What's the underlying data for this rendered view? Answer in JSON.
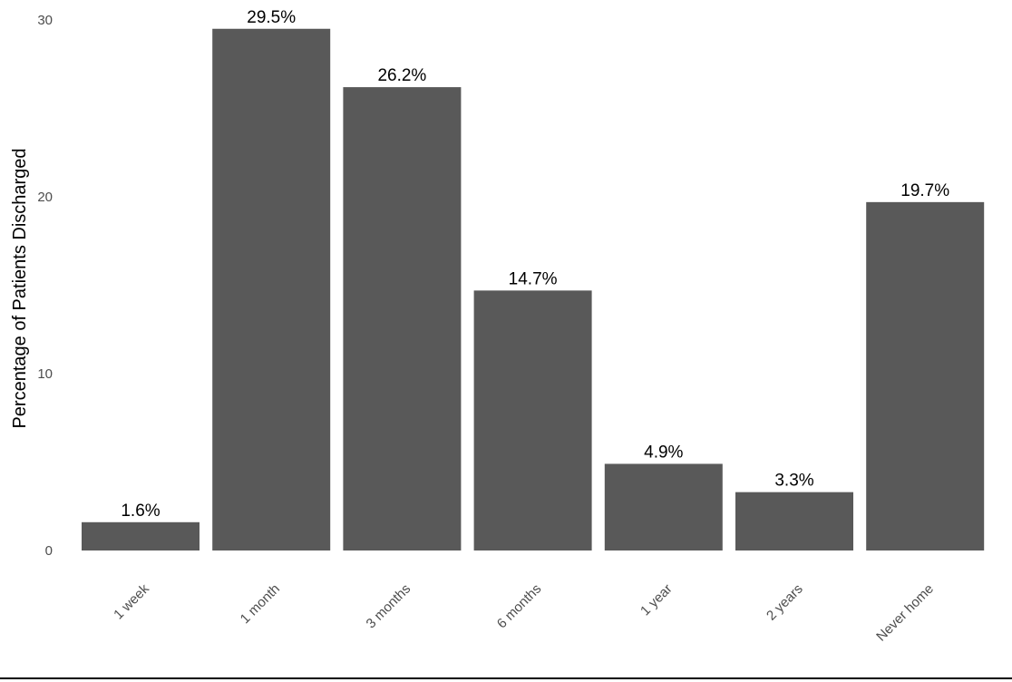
{
  "chart_data": {
    "type": "bar",
    "title": "",
    "xlabel": "",
    "ylabel": "Percentage of Patients Discharged",
    "categories": [
      "1 week",
      "1 month",
      "3 months",
      "6 months",
      "1 year",
      "2 years",
      "Never home"
    ],
    "values": [
      1.6,
      29.5,
      26.2,
      14.7,
      4.9,
      3.3,
      19.7
    ],
    "data_labels": [
      "1.6%",
      "29.5%",
      "26.2%",
      "14.7%",
      "4.9%",
      "3.3%",
      "19.7%"
    ],
    "ylim": [
      0,
      30
    ],
    "yticks": [
      "0",
      "10",
      "20",
      "30"
    ],
    "grid": false,
    "bar_color": "#595959"
  }
}
